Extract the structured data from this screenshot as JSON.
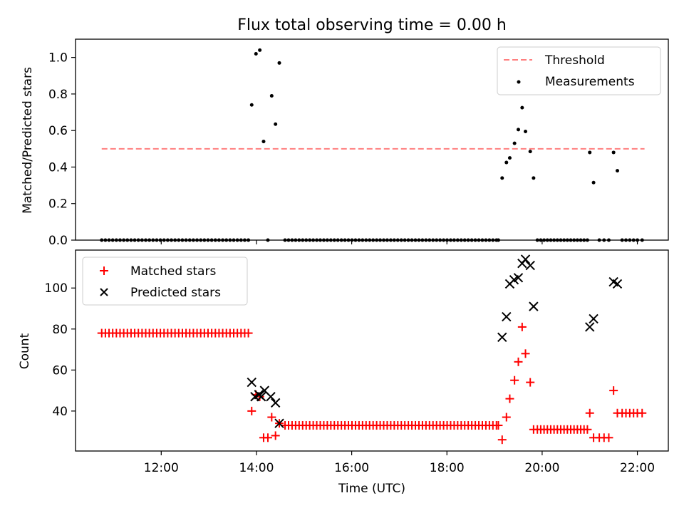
{
  "title": "Flux total observing time = 0.00 h",
  "xlabel": "Time (UTC)",
  "x_ticks": [
    {
      "label": "12:00",
      "h": 12
    },
    {
      "label": "14:00",
      "h": 14
    },
    {
      "label": "16:00",
      "h": 16
    },
    {
      "label": "18:00",
      "h": 18
    },
    {
      "label": "20:00",
      "h": 20
    },
    {
      "label": "22:00",
      "h": 22
    }
  ],
  "chart_data": [
    {
      "type": "scatter",
      "ylabel": "Matched/Predicted stars",
      "xlim": [
        10.2,
        22.65
      ],
      "ylim": [
        0,
        1.1
      ],
      "y_ticks": [
        "0.0",
        "0.2",
        "0.4",
        "0.6",
        "0.8",
        "1.0"
      ],
      "legend_position": "top-right",
      "threshold": {
        "name": "Threshold",
        "value": 0.5,
        "x_range": [
          10.75,
          22.15
        ],
        "color": "#ff7f7f",
        "style": "dashed"
      },
      "series": [
        {
          "name": "Measurements",
          "color": "#000000",
          "x": [
            10.75,
            10.827,
            10.904,
            10.981,
            11.058,
            11.135,
            11.212,
            11.289,
            11.366,
            11.443,
            11.52,
            11.597,
            11.674,
            11.751,
            11.828,
            11.905,
            11.982,
            12.059,
            12.136,
            12.213,
            12.29,
            12.367,
            12.444,
            12.521,
            12.598,
            12.675,
            12.752,
            12.829,
            12.906,
            12.983,
            13.06,
            13.137,
            13.214,
            13.291,
            13.368,
            13.445,
            13.522,
            13.599,
            13.676,
            13.753,
            13.83,
            13.9,
            13.99,
            14.07,
            14.15,
            14.24,
            14.32,
            14.4,
            14.48,
            14.6,
            14.674,
            14.748,
            14.822,
            14.896,
            14.97,
            15.044,
            15.118,
            15.192,
            15.266,
            15.34,
            15.414,
            15.488,
            15.562,
            15.636,
            15.71,
            15.784,
            15.858,
            15.932,
            16.006,
            16.08,
            16.154,
            16.228,
            16.302,
            16.376,
            16.45,
            16.524,
            16.598,
            16.672,
            16.746,
            16.82,
            16.894,
            16.968,
            17.042,
            17.116,
            17.19,
            17.264,
            17.338,
            17.412,
            17.486,
            17.56,
            17.634,
            17.708,
            17.782,
            17.856,
            17.93,
            18.004,
            18.078,
            18.152,
            18.226,
            18.3,
            18.374,
            18.448,
            18.522,
            18.596,
            18.67,
            18.744,
            18.818,
            18.892,
            18.966,
            19.04,
            19.08,
            19.16,
            19.25,
            19.32,
            19.42,
            19.5,
            19.58,
            19.65,
            19.75,
            19.82,
            19.9,
            19.97,
            20.04,
            20.11,
            20.18,
            20.25,
            20.32,
            20.39,
            20.46,
            20.53,
            20.6,
            20.67,
            20.74,
            20.81,
            20.88,
            20.95,
            21.0,
            21.08,
            21.2,
            21.3,
            21.4,
            21.5,
            21.58,
            21.68,
            21.76,
            21.84,
            21.92,
            22.0,
            22.1
          ],
          "y": [
            0,
            0,
            0,
            0,
            0,
            0,
            0,
            0,
            0,
            0,
            0,
            0,
            0,
            0,
            0,
            0,
            0,
            0,
            0,
            0,
            0,
            0,
            0,
            0,
            0,
            0,
            0,
            0,
            0,
            0,
            0,
            0,
            0,
            0,
            0,
            0,
            0,
            0,
            0,
            0,
            0,
            0.74,
            1.02,
            1.04,
            0.54,
            0,
            0.79,
            0.635,
            0.97,
            0,
            0,
            0,
            0,
            0,
            0,
            0,
            0,
            0,
            0,
            0,
            0,
            0,
            0,
            0,
            0,
            0,
            0,
            0,
            0,
            0,
            0,
            0,
            0,
            0,
            0,
            0,
            0,
            0,
            0,
            0,
            0,
            0,
            0,
            0,
            0,
            0,
            0,
            0,
            0,
            0,
            0,
            0,
            0,
            0,
            0,
            0,
            0,
            0,
            0,
            0,
            0,
            0,
            0,
            0,
            0,
            0,
            0,
            0,
            0,
            0,
            0,
            0.34,
            0.425,
            0.45,
            0.53,
            0.605,
            0.725,
            0.595,
            0.485,
            0.34,
            0,
            0,
            0,
            0,
            0,
            0,
            0,
            0,
            0,
            0,
            0,
            0,
            0,
            0,
            0,
            0,
            0.48,
            0.315,
            0,
            0,
            0,
            0.48,
            0.38,
            0,
            0,
            0,
            0,
            0,
            0
          ]
        }
      ]
    },
    {
      "type": "scatter",
      "ylabel": "Count",
      "xlim": [
        10.2,
        22.65
      ],
      "ylim": [
        20.5,
        118.5
      ],
      "y_ticks": [
        "40",
        "60",
        "80",
        "100"
      ],
      "legend_position": "top-left",
      "series": [
        {
          "name": "Matched stars",
          "marker": "plus",
          "color": "#ff0000",
          "x": [
            10.75,
            10.827,
            10.904,
            10.981,
            11.058,
            11.135,
            11.212,
            11.289,
            11.366,
            11.443,
            11.52,
            11.597,
            11.674,
            11.751,
            11.828,
            11.905,
            11.982,
            12.059,
            12.136,
            12.213,
            12.29,
            12.367,
            12.444,
            12.521,
            12.598,
            12.675,
            12.752,
            12.829,
            12.906,
            12.983,
            13.06,
            13.137,
            13.214,
            13.291,
            13.368,
            13.445,
            13.522,
            13.599,
            13.676,
            13.753,
            13.83,
            13.9,
            13.99,
            14.07,
            14.15,
            14.24,
            14.32,
            14.4,
            14.48,
            14.6,
            14.674,
            14.748,
            14.822,
            14.896,
            14.97,
            15.044,
            15.118,
            15.192,
            15.266,
            15.34,
            15.414,
            15.488,
            15.562,
            15.636,
            15.71,
            15.784,
            15.858,
            15.932,
            16.006,
            16.08,
            16.154,
            16.228,
            16.302,
            16.376,
            16.45,
            16.524,
            16.598,
            16.672,
            16.746,
            16.82,
            16.894,
            16.968,
            17.042,
            17.116,
            17.19,
            17.264,
            17.338,
            17.412,
            17.486,
            17.56,
            17.634,
            17.708,
            17.782,
            17.856,
            17.93,
            18.004,
            18.078,
            18.152,
            18.226,
            18.3,
            18.374,
            18.448,
            18.522,
            18.596,
            18.67,
            18.744,
            18.818,
            18.892,
            18.966,
            19.04,
            19.08,
            19.16,
            19.25,
            19.32,
            19.42,
            19.5,
            19.58,
            19.65,
            19.75,
            19.82,
            19.9,
            19.97,
            20.04,
            20.11,
            20.18,
            20.25,
            20.32,
            20.39,
            20.46,
            20.53,
            20.6,
            20.67,
            20.74,
            20.81,
            20.88,
            20.95,
            21.0,
            21.08,
            21.2,
            21.3,
            21.4,
            21.5,
            21.58,
            21.68,
            21.76,
            21.84,
            21.92,
            22.0,
            22.1
          ],
          "y": [
            78,
            78,
            78,
            78,
            78,
            78,
            78,
            78,
            78,
            78,
            78,
            78,
            78,
            78,
            78,
            78,
            78,
            78,
            78,
            78,
            78,
            78,
            78,
            78,
            78,
            78,
            78,
            78,
            78,
            78,
            78,
            78,
            78,
            78,
            78,
            78,
            78,
            78,
            78,
            78,
            78,
            40,
            48,
            47,
            27,
            27,
            37,
            28,
            34,
            33,
            33,
            33,
            33,
            33,
            33,
            33,
            33,
            33,
            33,
            33,
            33,
            33,
            33,
            33,
            33,
            33,
            33,
            33,
            33,
            33,
            33,
            33,
            33,
            33,
            33,
            33,
            33,
            33,
            33,
            33,
            33,
            33,
            33,
            33,
            33,
            33,
            33,
            33,
            33,
            33,
            33,
            33,
            33,
            33,
            33,
            33,
            33,
            33,
            33,
            33,
            33,
            33,
            33,
            33,
            33,
            33,
            33,
            33,
            33,
            33,
            33,
            26,
            37,
            46,
            55,
            64,
            81,
            68,
            54,
            31,
            31,
            31,
            31,
            31,
            31,
            31,
            31,
            31,
            31,
            31,
            31,
            31,
            31,
            31,
            31,
            31,
            39,
            27,
            27,
            27,
            27,
            50,
            39,
            39,
            39,
            39,
            39,
            39,
            39
          ]
        },
        {
          "name": "Predicted stars",
          "marker": "x",
          "color": "#000000",
          "x": [
            13.9,
            13.97,
            14.05,
            14.1,
            14.17,
            14.3,
            14.4,
            14.48,
            19.16,
            19.25,
            19.32,
            19.41,
            19.5,
            19.58,
            19.65,
            19.75,
            19.82,
            21.0,
            21.08,
            21.5,
            21.58
          ],
          "y": [
            54,
            47,
            48,
            47,
            50,
            47,
            44,
            34,
            76,
            86,
            102,
            104,
            105,
            112,
            114,
            111,
            91,
            81,
            85,
            103,
            102
          ]
        }
      ]
    }
  ]
}
